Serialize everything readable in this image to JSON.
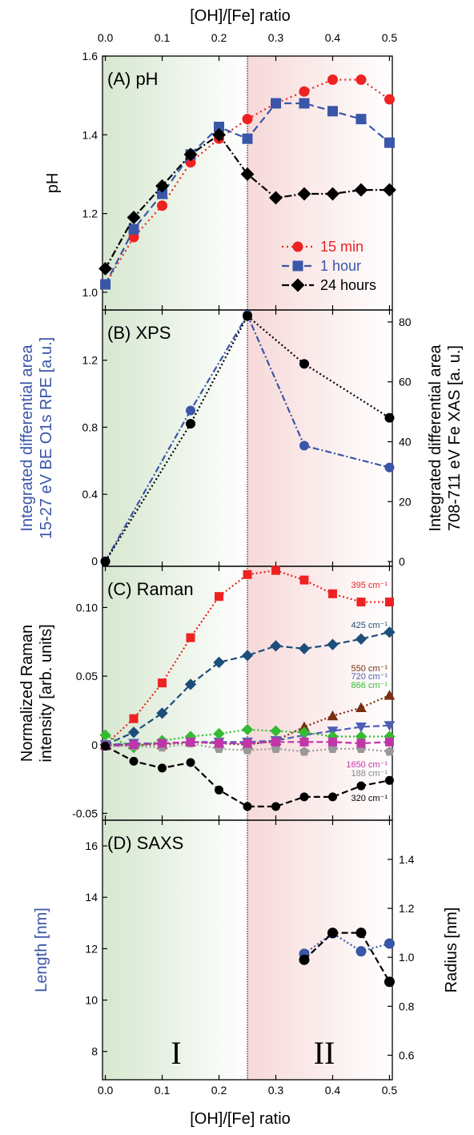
{
  "top_axis_title": "[OH]/[Fe] ratio",
  "bottom_axis_title": "[OH]/[Fe] ratio",
  "x_ticks": [
    "0.0",
    "0.1",
    "0.2",
    "0.3",
    "0.4",
    "0.5"
  ],
  "regions": {
    "boundary_x": 0.25,
    "left_label": "I",
    "right_label": "II",
    "left_color": "#c9dfc0",
    "right_color": "#f4cccc"
  },
  "chart_data": [
    {
      "type": "line",
      "panel": "(A) pH",
      "ylabel": "pH",
      "xlim": [
        -0.005,
        0.505
      ],
      "ylim": [
        0.955,
        1.6
      ],
      "yticks": [
        1.0,
        1.2,
        1.4,
        1.6
      ],
      "ytick_labels": [
        "1.0",
        "1.2",
        "1.4",
        "1.6"
      ],
      "legend_position": "right, middle-lower",
      "series": [
        {
          "name": "15 min",
          "color": "#ee2222",
          "marker": "circle",
          "dash": "2,4",
          "x": [
            0.0,
            0.05,
            0.1,
            0.15,
            0.2,
            0.25,
            0.3,
            0.35,
            0.4,
            0.45,
            0.5
          ],
          "y": [
            1.02,
            1.14,
            1.22,
            1.33,
            1.39,
            1.44,
            1.48,
            1.51,
            1.54,
            1.54,
            1.49
          ]
        },
        {
          "name": "1 hour",
          "color": "#3a56a8",
          "marker": "square",
          "dash": "9,5",
          "x": [
            0.0,
            0.05,
            0.1,
            0.15,
            0.2,
            0.25,
            0.3,
            0.35,
            0.4,
            0.45,
            0.5
          ],
          "y": [
            1.02,
            1.16,
            1.25,
            1.35,
            1.42,
            1.39,
            1.48,
            1.48,
            1.46,
            1.44,
            1.38
          ]
        },
        {
          "name": "24 hours",
          "color": "#000000",
          "marker": "diamond",
          "dash": "9,3,2,3",
          "x": [
            0.0,
            0.05,
            0.1,
            0.15,
            0.2,
            0.25,
            0.3,
            0.35,
            0.4,
            0.45,
            0.5
          ],
          "y": [
            1.06,
            1.19,
            1.27,
            1.35,
            1.4,
            1.3,
            1.24,
            1.25,
            1.25,
            1.26,
            1.26
          ]
        }
      ]
    },
    {
      "type": "line",
      "panel": "(B) XPS",
      "ylabel_left": [
        "Integrated differential area",
        "15-27 eV BE O1s RPE [a.u.]"
      ],
      "ylabel_right": [
        "Integrated differential area",
        "708-711 eV Fe XAS [a. u.]"
      ],
      "ylabel_left_color": "#3a56a8",
      "xlim": [
        -0.005,
        0.505
      ],
      "ylim_left": [
        -0.03,
        1.5
      ],
      "ylim_right": [
        -1.6,
        84
      ],
      "yticks_left": [
        0.0,
        0.4,
        0.8,
        1.2
      ],
      "ytick_labels_left": [
        "0",
        "0.4",
        "0.8",
        "1.2"
      ],
      "yticks_right": [
        0,
        20,
        40,
        60,
        80
      ],
      "ytick_labels_right": [
        "0",
        "20",
        "40",
        "60",
        "80"
      ],
      "series": [
        {
          "axis": "left",
          "color": "#3a56a8",
          "marker": "circle",
          "dash": "8,3,2,3",
          "x": [
            0.0,
            0.15,
            0.25,
            0.35,
            0.5
          ],
          "y": [
            0.0,
            0.9,
            1.47,
            0.69,
            0.56
          ]
        },
        {
          "axis": "right",
          "color": "#000000",
          "marker": "circle",
          "dash": "2,3",
          "x": [
            0.0,
            0.15,
            0.25,
            0.35,
            0.5
          ],
          "y": [
            0,
            46,
            82,
            66,
            48
          ]
        }
      ]
    },
    {
      "type": "line",
      "panel": "(C) Raman",
      "ylabel": [
        "Normalized Raman",
        "intensity [arb. units]"
      ],
      "xlim": [
        -0.005,
        0.505
      ],
      "ylim": [
        -0.055,
        0.13
      ],
      "yticks": [
        -0.05,
        0.0,
        0.05,
        0.1
      ],
      "ytick_labels": [
        "-0.05",
        "0",
        "0.05",
        "0.10"
      ],
      "series": [
        {
          "label": "395 cm⁻¹",
          "color": "#ee2222",
          "marker": "square",
          "dash": "2,3",
          "x": [
            0.0,
            0.05,
            0.1,
            0.15,
            0.2,
            0.25,
            0.3,
            0.35,
            0.4,
            0.45,
            0.5
          ],
          "y": [
            0.0,
            0.019,
            0.045,
            0.078,
            0.108,
            0.124,
            0.127,
            0.12,
            0.11,
            0.104,
            0.104
          ]
        },
        {
          "label": "425 cm⁻¹",
          "color": "#1d4e7a",
          "marker": "diamond",
          "dash": "8,4",
          "x": [
            0.0,
            0.05,
            0.1,
            0.15,
            0.2,
            0.25,
            0.3,
            0.35,
            0.4,
            0.45,
            0.5
          ],
          "y": [
            0.0,
            0.009,
            0.023,
            0.044,
            0.06,
            0.065,
            0.072,
            0.07,
            0.073,
            0.077,
            0.082
          ]
        },
        {
          "label": "550 cm⁻¹",
          "color": "#7a2e10",
          "marker": "triangle-up",
          "dash": "2,3",
          "x": [
            0.0,
            0.05,
            0.1,
            0.15,
            0.2,
            0.25,
            0.3,
            0.35,
            0.4,
            0.45,
            0.5
          ],
          "y": [
            0.0,
            0.0,
            0.0,
            0.002,
            0.001,
            0.0,
            0.003,
            0.013,
            0.021,
            0.027,
            0.036
          ]
        },
        {
          "label": "720 cm⁻¹",
          "color": "#4f5fb8",
          "marker": "triangle-down",
          "dash": "8,4",
          "x": [
            0.0,
            0.05,
            0.1,
            0.15,
            0.2,
            0.25,
            0.3,
            0.35,
            0.4,
            0.45,
            0.5
          ],
          "y": [
            0.0,
            0.001,
            0.001,
            0.002,
            0.002,
            0.002,
            0.003,
            0.007,
            0.01,
            0.013,
            0.014
          ]
        },
        {
          "label": "866 cm⁻¹",
          "color": "#33bb33",
          "marker": "diamond",
          "dash": "2,3",
          "x": [
            0.0,
            0.05,
            0.1,
            0.15,
            0.2,
            0.25,
            0.3,
            0.35,
            0.4,
            0.45,
            0.5
          ],
          "y": [
            0.007,
            -0.002,
            0.003,
            0.006,
            0.008,
            0.011,
            0.01,
            0.009,
            0.006,
            0.006,
            0.006
          ]
        },
        {
          "label": "188 cm⁻¹",
          "color": "#999999",
          "marker": "pentagon",
          "dash": "2,3",
          "x": [
            0.0,
            0.05,
            0.1,
            0.15,
            0.2,
            0.25,
            0.3,
            0.35,
            0.4,
            0.45,
            0.5
          ],
          "y": [
            -0.001,
            -0.001,
            -0.002,
            0.001,
            -0.003,
            -0.004,
            -0.003,
            -0.005,
            -0.003,
            -0.003,
            -0.005
          ]
        },
        {
          "label": "1650 cm⁻¹",
          "color": "#c036a8",
          "marker": "square",
          "dash": "8,4",
          "x": [
            0.0,
            0.05,
            0.1,
            0.15,
            0.2,
            0.25,
            0.3,
            0.35,
            0.4,
            0.45,
            0.5
          ],
          "y": [
            -0.001,
            0.0,
            0.001,
            0.002,
            0.001,
            0.001,
            0.002,
            0.002,
            0.002,
            0.001,
            0.002
          ]
        },
        {
          "label": "320 cm⁻¹",
          "color": "#000000",
          "marker": "circle",
          "dash": "8,4",
          "x": [
            0.0,
            0.05,
            0.1,
            0.15,
            0.2,
            0.25,
            0.3,
            0.35,
            0.4,
            0.45,
            0.5
          ],
          "y": [
            -0.001,
            -0.012,
            -0.017,
            -0.013,
            -0.033,
            -0.045,
            -0.045,
            -0.038,
            -0.038,
            -0.03,
            -0.026
          ]
        }
      ]
    },
    {
      "type": "line",
      "panel": "(D) SAXS",
      "ylabel_left": "Length [nm]",
      "ylabel_right": "Radius [nm]",
      "ylabel_left_color": "#3a56a8",
      "xlim": [
        -0.005,
        0.505
      ],
      "ylim_left": [
        6.9,
        17.0
      ],
      "ylim_right": [
        0.5,
        1.56
      ],
      "yticks_left": [
        8,
        10,
        12,
        14,
        16
      ],
      "ytick_labels_left": [
        "8",
        "10",
        "12",
        "14",
        "16"
      ],
      "yticks_right": [
        0.6,
        0.8,
        1.0,
        1.2,
        1.4
      ],
      "ytick_labels_right": [
        "0.6",
        "0.8",
        "1.0",
        "1.2",
        "1.4"
      ],
      "series": [
        {
          "axis": "left",
          "color": "#3a56a8",
          "marker": "circle",
          "dash": "2,3",
          "x": [
            0.35,
            0.4,
            0.45,
            0.5
          ],
          "y": [
            11.8,
            12.6,
            11.9,
            12.2
          ]
        },
        {
          "axis": "right",
          "color": "#000000",
          "marker": "circle",
          "dash": "8,4",
          "x": [
            0.35,
            0.4,
            0.45,
            0.5
          ],
          "y": [
            0.99,
            1.1,
            1.1,
            0.9
          ]
        }
      ]
    }
  ]
}
